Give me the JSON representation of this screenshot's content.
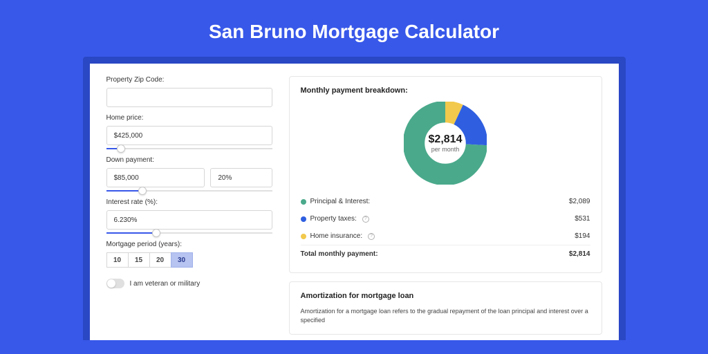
{
  "title": "San Bruno Mortgage Calculator",
  "form": {
    "zip": {
      "label": "Property Zip Code:",
      "value": ""
    },
    "home_price": {
      "label": "Home price:",
      "value": "$425,000",
      "slider_pct": 9
    },
    "down_payment": {
      "label": "Down payment:",
      "amount": "$85,000",
      "pct": "20%",
      "slider_pct": 22
    },
    "interest_rate": {
      "label": "Interest rate (%):",
      "value": "6.230%",
      "slider_pct": 30
    },
    "period": {
      "label": "Mortgage period (years):",
      "options": [
        "10",
        "15",
        "20",
        "30"
      ],
      "selected": "30"
    },
    "veteran": {
      "label": "I am veteran or military",
      "on": false
    }
  },
  "breakdown": {
    "title": "Monthly payment breakdown:",
    "donut": {
      "value": "$2,814",
      "sub": "per month"
    },
    "donut_chart": {
      "type": "donut",
      "thickness": 11,
      "start_angle_deg": -90,
      "slices": [
        {
          "name": "Home insurance",
          "value": 194,
          "pct": 6.9,
          "color": "#f2c94c"
        },
        {
          "name": "Property taxes",
          "value": 531,
          "pct": 18.9,
          "color": "#2f5fe0"
        },
        {
          "name": "Principal & Interest",
          "value": 2089,
          "pct": 74.2,
          "color": "#4aa98b"
        }
      ],
      "center_bg": "#ffffff",
      "value_fontsize": 16,
      "sub_fontsize": 9,
      "value_color": "#1a1a1a",
      "sub_color": "#666666"
    },
    "rows": [
      {
        "label": "Principal & Interest:",
        "value": "$2,089",
        "color": "#4aa98b",
        "info": false
      },
      {
        "label": "Property taxes:",
        "value": "$531",
        "color": "#2f5fe0",
        "info": true
      },
      {
        "label": "Home insurance:",
        "value": "$194",
        "color": "#f2c94c",
        "info": true
      }
    ],
    "total": {
      "label": "Total monthly payment:",
      "value": "$2,814"
    }
  },
  "amortization": {
    "title": "Amortization for mortgage loan",
    "text": "Amortization for a mortgage loan refers to the gradual repayment of the loan principal and interest over a specified"
  },
  "colors": {
    "page_bg": "#3858e9",
    "window_bg": "#2a47c4",
    "card_border": "#e6e6e6",
    "input_border": "#d6d6d6",
    "slider_fill": "#3858e9"
  }
}
